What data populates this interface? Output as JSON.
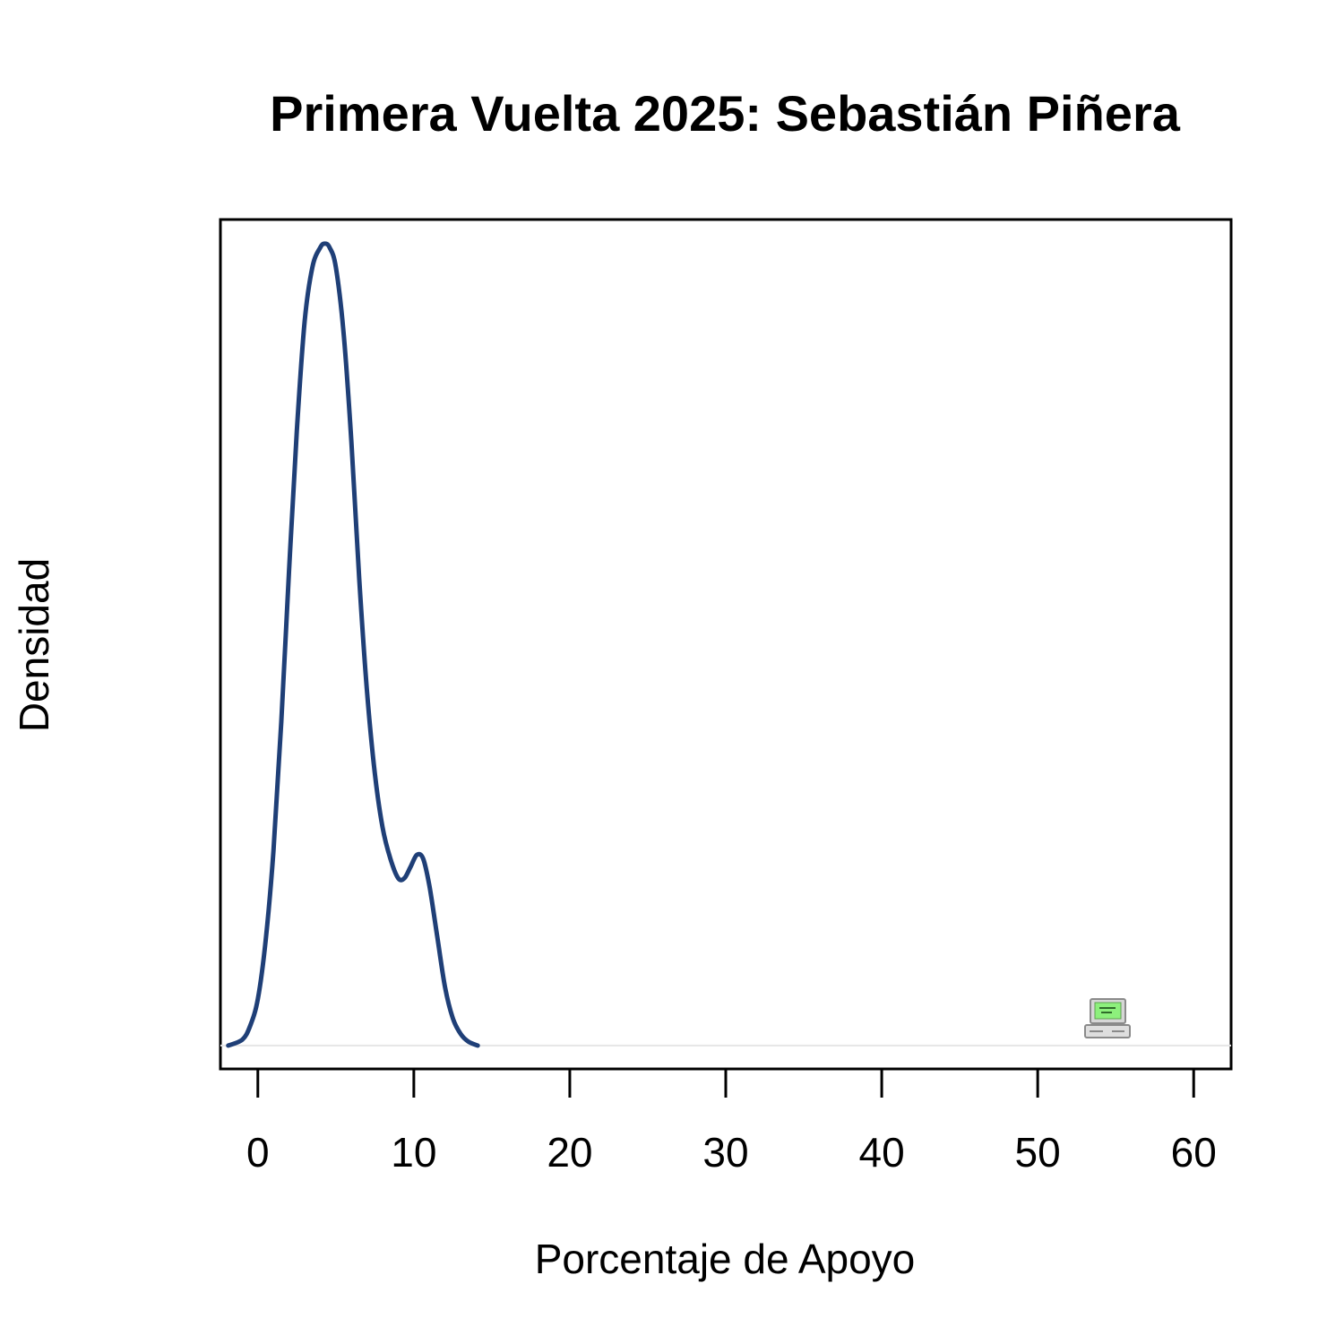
{
  "chart_data": {
    "type": "line",
    "title": "Primera Vuelta 2025: Sebastián Piñera",
    "xlabel": "Porcentaje de Apoyo",
    "ylabel": "Densidad",
    "xlim": [
      -2.4,
      62.4
    ],
    "ylim": [
      -0.006,
      0.2122
    ],
    "x_ticks": [
      0,
      10,
      20,
      30,
      40,
      50,
      60
    ],
    "x_tick_labels": [
      "0",
      "10",
      "20",
      "30",
      "40",
      "50",
      "60"
    ],
    "y_ticks_shown": false,
    "grid": false,
    "legend": "none",
    "baseline_y": 0,
    "series": [
      {
        "x": [
          -1.9,
          -1,
          -0.5,
          0,
          0.5,
          1,
          1.5,
          2,
          2.5,
          3,
          3.5,
          4,
          4.3,
          4.6,
          5,
          5.5,
          6,
          6.5,
          7,
          7.5,
          8,
          8.5,
          9,
          9.4,
          9.8,
          10.2,
          10.6,
          11,
          11.5,
          12,
          12.5,
          13,
          13.5,
          14.1
        ],
        "y": [
          0,
          0.0015,
          0.005,
          0.012,
          0.027,
          0.05,
          0.083,
          0.122,
          0.158,
          0.186,
          0.2,
          0.205,
          0.206,
          0.205,
          0.2,
          0.183,
          0.155,
          0.12,
          0.091,
          0.07,
          0.056,
          0.048,
          0.043,
          0.043,
          0.046,
          0.049,
          0.048,
          0.041,
          0.028,
          0.015,
          0.007,
          0.003,
          0.001,
          0
        ]
      }
    ],
    "line_color": "#1f3f77",
    "annotation_icon": "computer-icon"
  }
}
